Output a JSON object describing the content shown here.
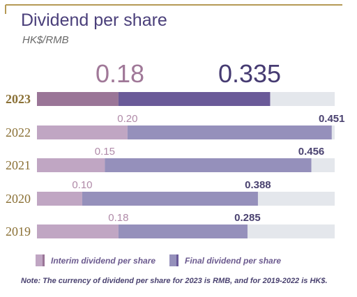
{
  "chart_data": {
    "type": "bar",
    "orientation": "horizontal",
    "stacked": true,
    "title": "Dividend per share",
    "subtitle": "HK$/RMB",
    "categories": [
      "2023",
      "2022",
      "2021",
      "2020",
      "2019"
    ],
    "series": [
      {
        "name": "Interim dividend per share",
        "values": [
          0.18,
          0.2,
          0.15,
          0.1,
          0.18
        ],
        "labels": [
          "0.18",
          "0.20",
          "0.15",
          "0.10",
          "0.18"
        ]
      },
      {
        "name": "Final dividend per share",
        "values": [
          0.335,
          0.451,
          0.456,
          0.388,
          0.285
        ],
        "labels": [
          "0.335",
          "0.451",
          "0.456",
          "0.388",
          "0.285"
        ]
      }
    ],
    "xlim": [
      0,
      0.72
    ],
    "grid": false,
    "legend_position": "bottom",
    "note": "Note: The currency of dividend per share for 2023 is RMB, and for 2019-2022 is HK$."
  },
  "colors": {
    "interim_highlight": "#9a7597",
    "final_highlight": "#6a5a98",
    "interim": "#c0a6c3",
    "final": "#9590bb",
    "track": "#e4e7ec",
    "accent_line": "#b59a55"
  }
}
